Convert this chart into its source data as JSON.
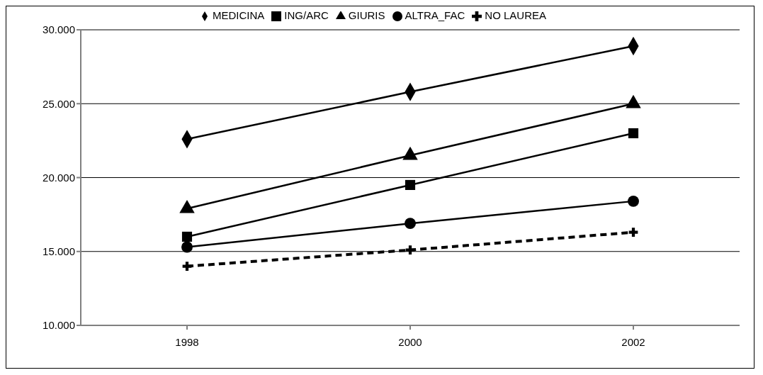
{
  "chart_data": {
    "type": "line",
    "categories": [
      "1998",
      "2000",
      "2002"
    ],
    "series": [
      {
        "name": "MEDICINA",
        "color": "#000000",
        "marker": "diamond",
        "line_style": "solid",
        "values": [
          22600,
          25800,
          28900
        ]
      },
      {
        "name": "ING/ARC",
        "color": "#000000",
        "marker": "square",
        "line_style": "solid",
        "values": [
          16000,
          19500,
          23000
        ]
      },
      {
        "name": "GIURIS",
        "color": "#000000",
        "marker": "triangle",
        "line_style": "solid",
        "values": [
          17900,
          21500,
          25000
        ]
      },
      {
        "name": "ALTRA_FAC",
        "color": "#000000",
        "marker": "circle",
        "line_style": "solid",
        "values": [
          15300,
          16900,
          18400
        ]
      },
      {
        "name": "NO LAUREA",
        "color": "#000000",
        "marker": "cross",
        "line_style": "dashed",
        "values": [
          14000,
          15100,
          16300
        ]
      }
    ],
    "ylim": [
      10000,
      30000
    ],
    "yticks": [
      {
        "value": 10000,
        "label": "10.000"
      },
      {
        "value": 15000,
        "label": "15.000"
      },
      {
        "value": 20000,
        "label": "20.000"
      },
      {
        "value": 25000,
        "label": "25.000"
      },
      {
        "value": 30000,
        "label": "30.000"
      }
    ],
    "grid": "y",
    "legend": "top"
  }
}
